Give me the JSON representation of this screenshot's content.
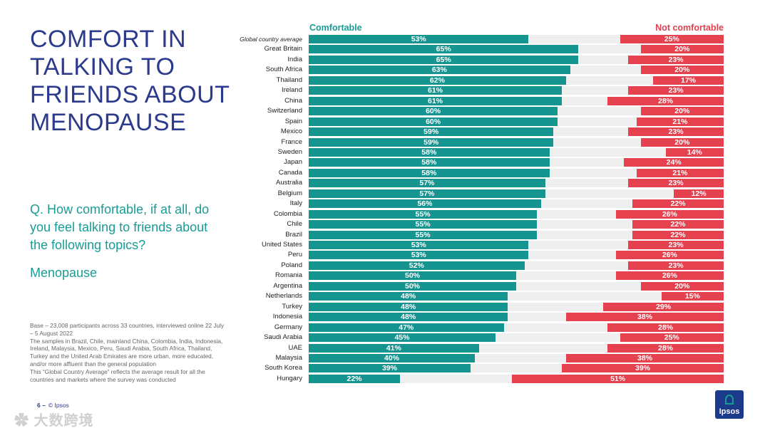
{
  "title": "COMFORT IN TALKING TO FRIENDS ABOUT MENOPAUSE",
  "question": "Q. How comfortable, if at all, do you feel talking to friends about the following topics?",
  "topic": "Menopause",
  "notes": [
    "Base – 23,008 participants across 33 countries, interviewed online 22 July – 5 August 2022",
    "The samples in Brazil, Chile, mainland China, Colombia, India, Indonesia, Ireland, Malaysia, Mexico, Peru, Saudi Arabia, South Africa, Thailand, Turkey and the United Arab Emirates are more urban, more educated, and/or more affluent than the general population",
    "This “Global Country Average” reflects the average result for all the countries and markets where the survey was conducted"
  ],
  "footer": {
    "page": "6 –",
    "copyright": "© Ipsos"
  },
  "logo": "Ipsos",
  "watermark": "大数跨境",
  "colors": {
    "comfortable": "#16948f",
    "not_comfortable": "#e5414f",
    "title": "#2b3a8c"
  },
  "chart_data": {
    "type": "bar",
    "orientation": "horizontal-diverging",
    "xlim": [
      0,
      100
    ],
    "unit": "%",
    "categories": [
      "Global country average",
      "Great Britain",
      "India",
      "South Africa",
      "Thailand",
      "Ireland",
      "China",
      "Switzerland",
      "Spain",
      "Mexico",
      "France",
      "Sweden",
      "Japan",
      "Canada",
      "Australia",
      "Belgium",
      "Italy",
      "Colombia",
      "Chile",
      "Brazil",
      "United States",
      "Peru",
      "Poland",
      "Romania",
      "Argentina",
      "Netherlands",
      "Turkey",
      "Indonesia",
      "Germany",
      "Saudi Arabia",
      "UAE",
      "Malaysia",
      "South Korea",
      "Hungary"
    ],
    "series": [
      {
        "name": "Comfortable",
        "values": [
          53,
          65,
          65,
          63,
          62,
          61,
          61,
          60,
          60,
          59,
          59,
          58,
          58,
          58,
          57,
          57,
          56,
          55,
          55,
          55,
          53,
          53,
          52,
          50,
          50,
          48,
          48,
          48,
          47,
          45,
          41,
          40,
          39,
          22
        ]
      },
      {
        "name": "Not comfortable",
        "values": [
          25,
          20,
          23,
          20,
          17,
          23,
          28,
          20,
          21,
          23,
          20,
          14,
          24,
          21,
          23,
          12,
          22,
          26,
          22,
          22,
          23,
          26,
          23,
          26,
          20,
          15,
          29,
          38,
          28,
          25,
          28,
          38,
          39,
          51
        ]
      }
    ]
  }
}
